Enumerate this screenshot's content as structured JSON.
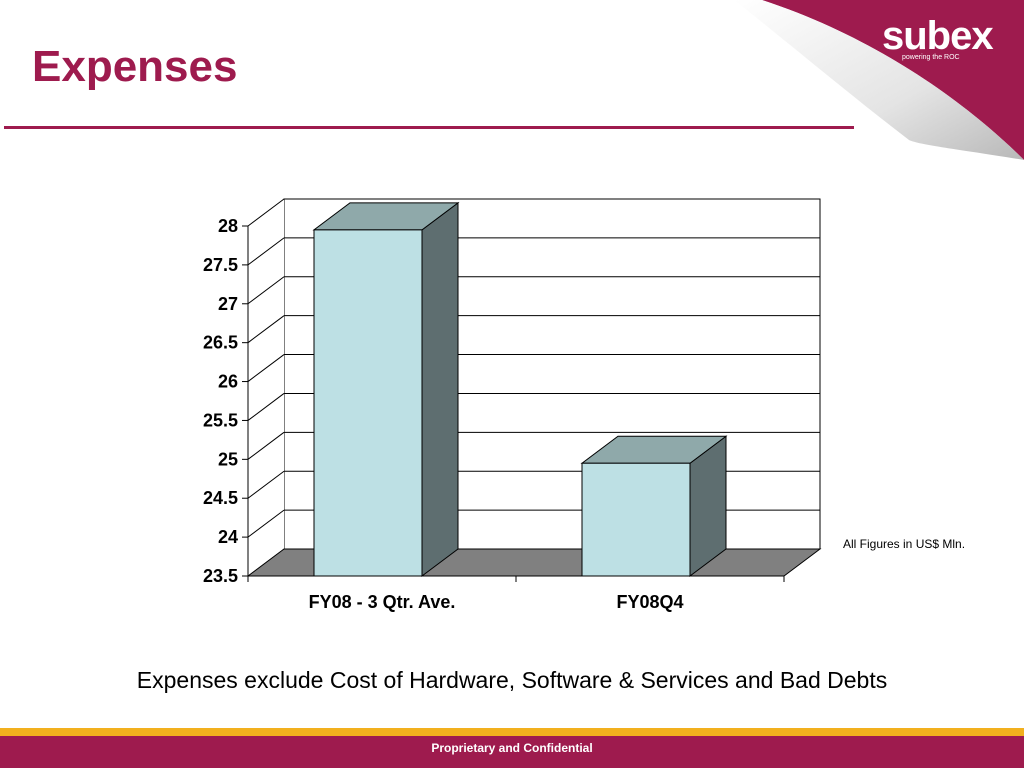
{
  "slide": {
    "title": "Expenses",
    "units_note": "All Figures in US$ Mln.",
    "caption": "Expenses exclude Cost of Hardware, Software & Services and Bad Debts",
    "footer": "Proprietary and Confidential",
    "logo": {
      "text": "subex",
      "tagline": "powering the ROC"
    },
    "colors": {
      "brand": "#9e1b4e",
      "accent": "#f2b01e",
      "bar_front": "#bde0e4",
      "bar_top": "#8fa9aa",
      "bar_side": "#5e6e70",
      "floor": "#808080"
    }
  },
  "chart_data": {
    "type": "bar",
    "categories": [
      "FY08 - 3 Qtr. Ave.",
      "FY08Q4"
    ],
    "values": [
      27.95,
      24.95
    ],
    "ylim": [
      23.5,
      28
    ],
    "yticks": [
      "23.5",
      "24",
      "24.5",
      "25",
      "25.5",
      "26",
      "26.5",
      "27",
      "27.5",
      "28"
    ],
    "grid": true,
    "three_d": true,
    "title": "",
    "xlabel": "",
    "ylabel": ""
  }
}
